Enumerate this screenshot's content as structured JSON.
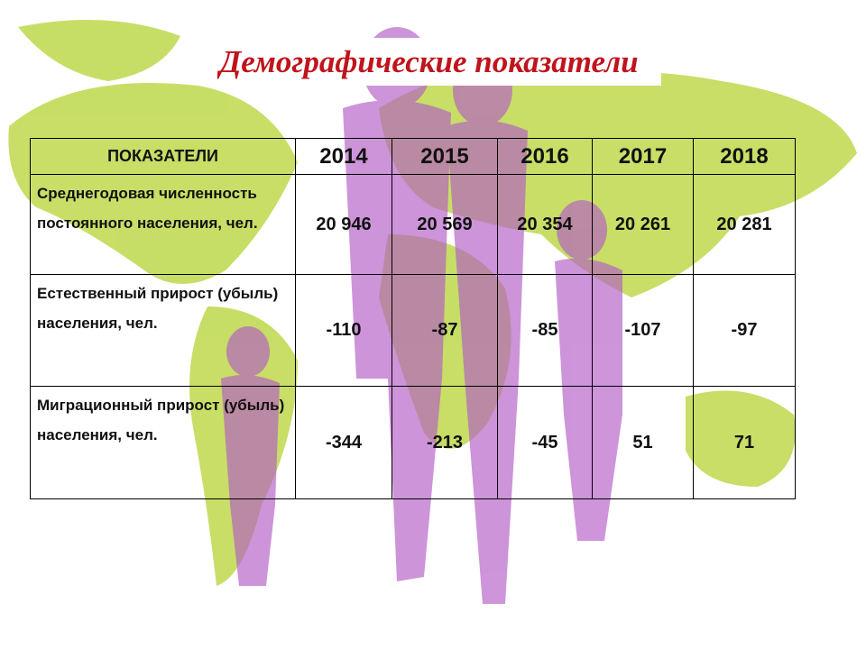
{
  "header": {
    "title": "Демографические показатели"
  },
  "table": {
    "columns": [
      "ПОКАЗАТЕЛИ",
      "2014",
      "2015",
      "2016",
      "2017",
      "2018"
    ],
    "rows": [
      [
        "Среднегодовая численность постоянного населения, чел.",
        "20 946",
        "20 569",
        "20 354",
        "20 261",
        "20 281"
      ],
      [
        "Естественный прирост (убыль) населения, чел.",
        "-110",
        "-87",
        "-85",
        "-107",
        "-97"
      ],
      [
        "Миграционный прирост (убыль) населения, чел.",
        "-344",
        "-213",
        "-45",
        "51",
        "71"
      ]
    ]
  }
}
